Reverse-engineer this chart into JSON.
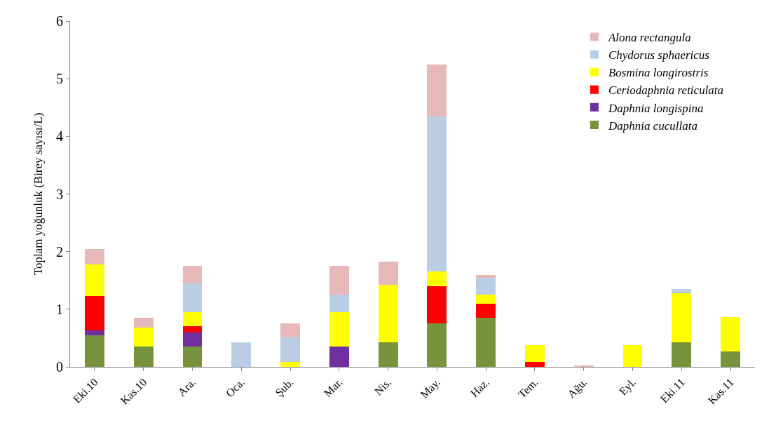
{
  "chart_data": {
    "type": "bar",
    "stacked": true,
    "ylabel": "Toplam yoğunluk (Birey sayısı/L)",
    "categories": [
      "Eki.10",
      "Kas.10",
      "Ara.",
      "Oca.",
      "Şub.",
      "Mar.",
      "Nis.",
      "May.",
      "Haz.",
      "Tem.",
      "Ağu.",
      "Eyl.",
      "Eki.11",
      "Kas.11"
    ],
    "series": [
      {
        "name": "Daphnia cucullata",
        "color": "#77933c",
        "values": [
          0.55,
          0.35,
          0.35,
          0,
          0,
          0,
          0.43,
          0.75,
          0.85,
          0,
          0,
          0,
          0.43,
          0.27
        ]
      },
      {
        "name": "Daphnia longispina",
        "color": "#7030a0",
        "values": [
          0.08,
          0,
          0.25,
          0,
          0,
          0.35,
          0,
          0,
          0,
          0,
          0,
          0,
          0,
          0
        ]
      },
      {
        "name": "Ceriodaphnia reticulata",
        "color": "#ff0000",
        "values": [
          0.6,
          0,
          0.1,
          0,
          0,
          0,
          0,
          0.65,
          0.25,
          0.08,
          0,
          0,
          0,
          0
        ]
      },
      {
        "name": "Bosmina longirostris",
        "color": "#ffff00",
        "values": [
          0.55,
          0.33,
          0.25,
          0,
          0.08,
          0.6,
          1.0,
          0.25,
          0.15,
          0.3,
          0,
          0.38,
          0.85,
          0.6
        ]
      },
      {
        "name": "Chydorus sphaericus",
        "color": "#b9cde5",
        "values": [
          0,
          0,
          0.5,
          0.43,
          0.43,
          0.3,
          0,
          2.7,
          0.3,
          0,
          0,
          0,
          0.07,
          0
        ]
      },
      {
        "name": "Alona rectangula",
        "color": "#e6b9b8",
        "values": [
          0.27,
          0.17,
          0.3,
          0,
          0.25,
          0.5,
          0.4,
          0.9,
          0.05,
          0,
          0.02,
          0,
          0,
          0
        ]
      }
    ],
    "ylim": [
      0,
      6
    ],
    "yticks": [
      0,
      1,
      2,
      3,
      4,
      5,
      6
    ],
    "legend": "top right"
  }
}
